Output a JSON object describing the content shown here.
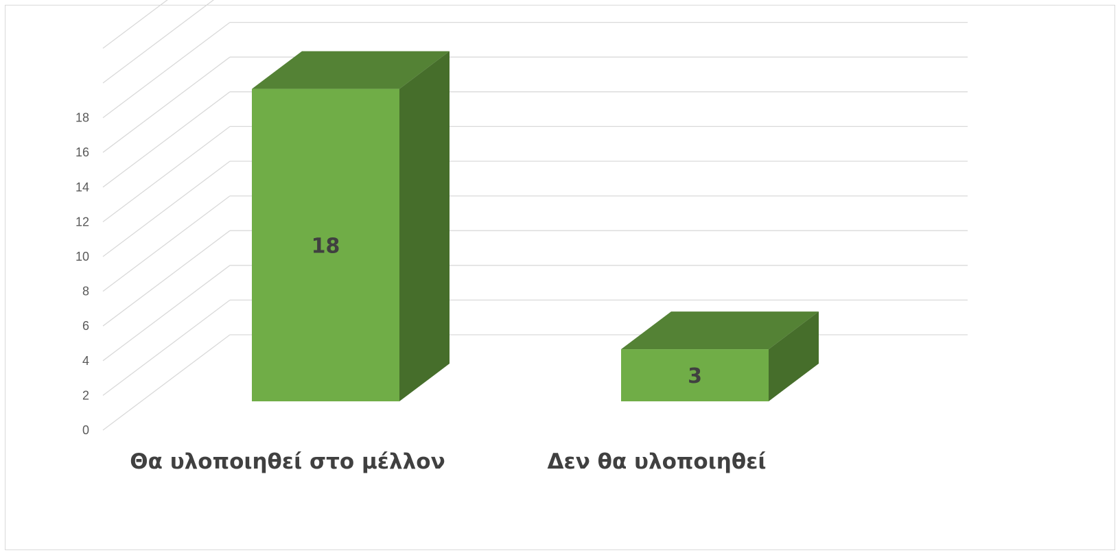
{
  "chart_data": {
    "type": "bar",
    "style": "3d-column",
    "categories": [
      "Θα υλοποιηθεί στο μέλλον",
      "Δεν θα υλοποιηθεί"
    ],
    "values": [
      18,
      3
    ],
    "title": "",
    "xlabel": "",
    "ylabel": "",
    "ylim": [
      0,
      18
    ],
    "yticks": [
      0,
      2,
      4,
      6,
      8,
      10,
      12,
      14,
      16,
      18
    ],
    "grid": true,
    "legend": "none",
    "data_labels": true,
    "colors": {
      "front": "#70ad47",
      "top": "#548235",
      "side": "#466e2b",
      "grid": "#d9d9d9",
      "tick_text": "#595959",
      "label_text": "#404040"
    }
  }
}
